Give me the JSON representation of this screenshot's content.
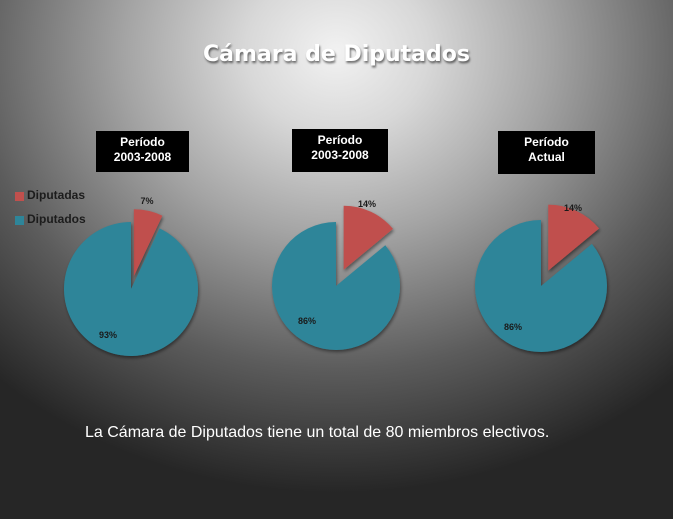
{
  "slide": {
    "title": "Cámara de Diputados",
    "footnote": "La Cámara de Diputados tiene un total de 80 miembros electivos."
  },
  "colors": {
    "diputadas": "#c0504d",
    "diputados": "#2e8599",
    "label_box": "#000000"
  },
  "chart_data": {
    "type": "pie",
    "legend": [
      "Diputadas",
      "Diputados"
    ],
    "legend_position": "left",
    "charts": [
      {
        "period_label": [
          "Período",
          "2003-2008"
        ],
        "slices": [
          {
            "name": "Diputadas",
            "value": 7,
            "label": "7%"
          },
          {
            "name": "Diputados",
            "value": 93,
            "label": "93%"
          }
        ]
      },
      {
        "period_label": [
          "Período",
          "2003-2008"
        ],
        "slices": [
          {
            "name": "Diputadas",
            "value": 14,
            "label": "14%"
          },
          {
            "name": "Diputados",
            "value": 86,
            "label": "86%"
          }
        ]
      },
      {
        "period_label": [
          "Período",
          "Actual"
        ],
        "slices": [
          {
            "name": "Diputadas",
            "value": 14,
            "label": "14%"
          },
          {
            "name": "Diputados",
            "value": 86,
            "label": "86%"
          }
        ]
      }
    ]
  }
}
